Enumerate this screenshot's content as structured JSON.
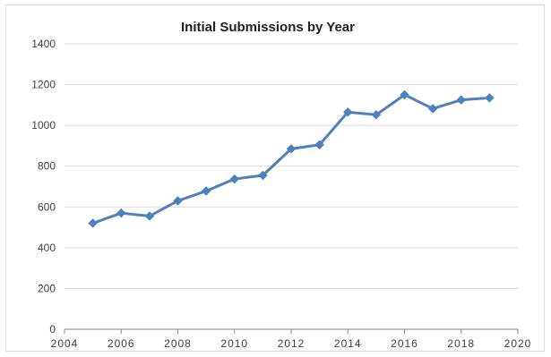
{
  "chart_data": {
    "type": "line",
    "title": "Initial Submissions by Year",
    "xlabel": "",
    "ylabel": "",
    "xlim": [
      2004,
      2020
    ],
    "ylim": [
      0,
      1400
    ],
    "x_ticks": [
      2004,
      2006,
      2008,
      2010,
      2012,
      2014,
      2016,
      2018,
      2020
    ],
    "y_ticks": [
      0,
      200,
      400,
      600,
      800,
      1000,
      1200,
      1400
    ],
    "grid": true,
    "legend": "none",
    "series": [
      {
        "color": "#4f81bd",
        "marker": "diamond",
        "x": [
          2005,
          2006,
          2007,
          2008,
          2009,
          2010,
          2011,
          2012,
          2013,
          2014,
          2015,
          2016,
          2017,
          2018,
          2019
        ],
        "values": [
          520,
          570,
          555,
          630,
          678,
          737,
          755,
          885,
          905,
          1065,
          1052,
          1150,
          1082,
          1125,
          1135
        ]
      }
    ]
  }
}
